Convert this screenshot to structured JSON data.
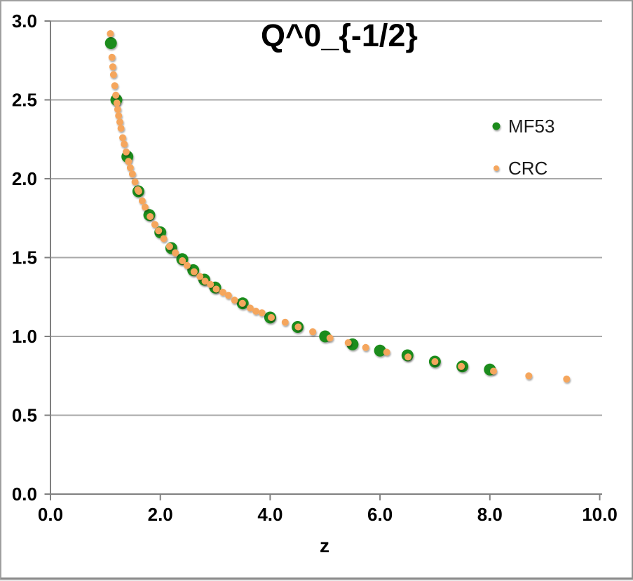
{
  "window": {
    "background": "#ffffff",
    "border_color": "#a0a0a0"
  },
  "chart_data": {
    "type": "scatter",
    "title": "Q^0_{-1/2}",
    "xlabel": "z",
    "ylabel": "",
    "xlim": [
      0.0,
      10.0
    ],
    "ylim": [
      0.0,
      3.0
    ],
    "x_ticks": [
      0.0,
      2.0,
      4.0,
      6.0,
      8.0,
      10.0
    ],
    "y_ticks": [
      0.0,
      0.5,
      1.0,
      1.5,
      2.0,
      2.5,
      3.0
    ],
    "tick_decimals": 1,
    "grid": "horizontal",
    "legend_position": "upper-right",
    "colors": {
      "mf53": "#1e8c1e",
      "crc": "#f5a65d",
      "gridline": "#a8a8a8",
      "axis": "#808080",
      "tick_text": "#000000"
    },
    "series": [
      {
        "name": "MF53",
        "color": "#1e8c1e",
        "marker_diameter": 17,
        "points": [
          [
            1.1,
            2.86
          ],
          [
            1.2,
            2.5
          ],
          [
            1.4,
            2.14
          ],
          [
            1.6,
            1.92
          ],
          [
            1.8,
            1.77
          ],
          [
            2.0,
            1.66
          ],
          [
            2.2,
            1.56
          ],
          [
            2.4,
            1.49
          ],
          [
            2.6,
            1.42
          ],
          [
            2.8,
            1.36
          ],
          [
            3.0,
            1.31
          ],
          [
            3.5,
            1.21
          ],
          [
            4.0,
            1.12
          ],
          [
            4.5,
            1.06
          ],
          [
            5.0,
            1.0
          ],
          [
            5.5,
            0.95
          ],
          [
            6.0,
            0.91
          ],
          [
            6.5,
            0.88
          ],
          [
            7.0,
            0.84
          ],
          [
            7.5,
            0.81
          ],
          [
            8.0,
            0.79
          ]
        ]
      },
      {
        "name": "CRC",
        "color": "#f5a65d",
        "marker_diameter": 10,
        "points": [
          [
            1.09,
            2.92
          ],
          [
            1.119,
            2.77
          ],
          [
            1.135,
            2.71
          ],
          [
            1.148,
            2.66
          ],
          [
            1.17,
            2.59
          ],
          [
            1.19,
            2.53
          ],
          [
            1.21,
            2.48
          ],
          [
            1.224,
            2.44
          ],
          [
            1.241,
            2.4
          ],
          [
            1.263,
            2.36
          ],
          [
            1.284,
            2.32
          ],
          [
            1.314,
            2.26
          ],
          [
            1.343,
            2.22
          ],
          [
            1.378,
            2.17
          ],
          [
            1.42,
            2.11
          ],
          [
            1.454,
            2.07
          ],
          [
            1.492,
            2.03
          ],
          [
            1.539,
            1.98
          ],
          [
            1.59,
            1.93
          ],
          [
            1.607,
            1.92
          ],
          [
            1.671,
            1.86
          ],
          [
            1.722,
            1.82
          ],
          [
            1.815,
            1.76
          ],
          [
            1.901,
            1.71
          ],
          [
            1.968,
            1.67
          ],
          [
            2.062,
            1.62
          ],
          [
            2.168,
            1.57
          ],
          [
            2.275,
            1.53
          ],
          [
            2.402,
            1.48
          ],
          [
            2.487,
            1.45
          ],
          [
            2.615,
            1.41
          ],
          [
            2.721,
            1.38
          ],
          [
            2.815,
            1.35
          ],
          [
            2.912,
            1.33
          ],
          [
            3.019,
            1.3
          ],
          [
            3.138,
            1.28
          ],
          [
            3.24,
            1.26
          ],
          [
            3.351,
            1.23
          ],
          [
            3.495,
            1.21
          ],
          [
            3.636,
            1.18
          ],
          [
            3.74,
            1.16
          ],
          [
            3.849,
            1.15
          ],
          [
            4.02,
            1.12
          ],
          [
            4.273,
            1.09
          ],
          [
            4.51,
            1.06
          ],
          [
            4.775,
            1.03
          ],
          [
            5.089,
            0.99
          ],
          [
            5.42,
            0.96
          ],
          [
            5.74,
            0.93
          ],
          [
            6.122,
            0.9
          ],
          [
            6.51,
            0.87
          ],
          [
            7.0,
            0.84
          ],
          [
            7.48,
            0.81
          ],
          [
            8.066,
            0.78
          ],
          [
            8.708,
            0.75
          ],
          [
            9.397,
            0.73
          ]
        ]
      }
    ]
  },
  "legend": {
    "items": [
      {
        "label": "MF53"
      },
      {
        "label": "CRC"
      }
    ]
  }
}
